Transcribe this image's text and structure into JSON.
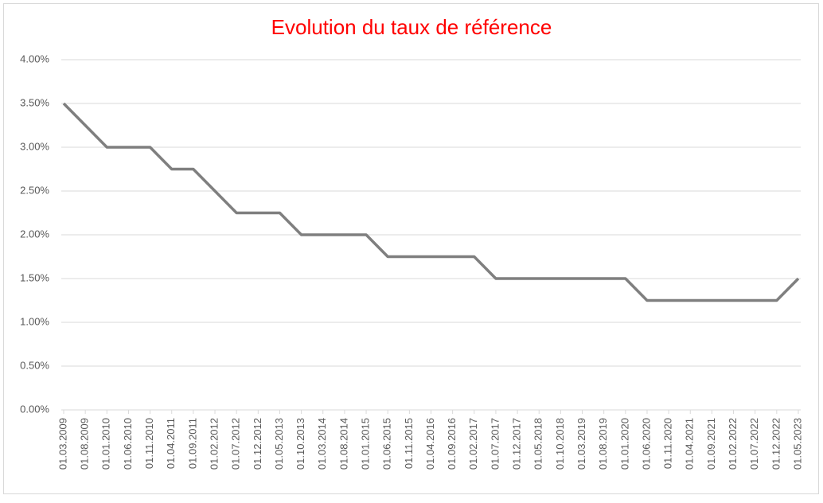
{
  "chart_data": {
    "type": "line",
    "title": "Evolution du taux de référence",
    "categories": [
      "01.03.2009",
      "01.08.2009",
      "01.01.2010",
      "01.06.2010",
      "01.11.2010",
      "01.04.2011",
      "01.09.2011",
      "01.02.2012",
      "01.07.2012",
      "01.12.2012",
      "01.05.2013",
      "01.10.2013",
      "01.03.2014",
      "01.08.2014",
      "01.01.2015",
      "01.06.2015",
      "01.11.2015",
      "01.04.2016",
      "01.09.2016",
      "01.02.2017",
      "01.07.2017",
      "01.12.2017",
      "01.05.2018",
      "01.10.2018",
      "01.03.2019",
      "01.08.2019",
      "01.01.2020",
      "01.06.2020",
      "01.11.2020",
      "01.04.2021",
      "01.09.2021",
      "01.02.2022",
      "01.07.2022",
      "01.12.2022",
      "01.05.2023"
    ],
    "values": [
      3.5,
      3.25,
      3.0,
      3.0,
      3.0,
      2.75,
      2.75,
      2.5,
      2.25,
      2.25,
      2.25,
      2.0,
      2.0,
      2.0,
      2.0,
      1.75,
      1.75,
      1.75,
      1.75,
      1.75,
      1.5,
      1.5,
      1.5,
      1.5,
      1.5,
      1.5,
      1.5,
      1.25,
      1.25,
      1.25,
      1.25,
      1.25,
      1.25,
      1.25,
      1.5
    ],
    "color": "#7f7f7f",
    "ylim": [
      0,
      4
    ],
    "yticks": [
      {
        "value": 0,
        "label": "0.00%"
      },
      {
        "value": 0.5,
        "label": "0.50%"
      },
      {
        "value": 1,
        "label": "1.00%"
      },
      {
        "value": 1.5,
        "label": "1.50%"
      },
      {
        "value": 2,
        "label": "2.00%"
      },
      {
        "value": 2.5,
        "label": "2.50%"
      },
      {
        "value": 3,
        "label": "3.00%"
      },
      {
        "value": 3.5,
        "label": "3.50%"
      },
      {
        "value": 4,
        "label": "4.00%"
      }
    ],
    "grid": true,
    "title_color": "#ff0000"
  }
}
